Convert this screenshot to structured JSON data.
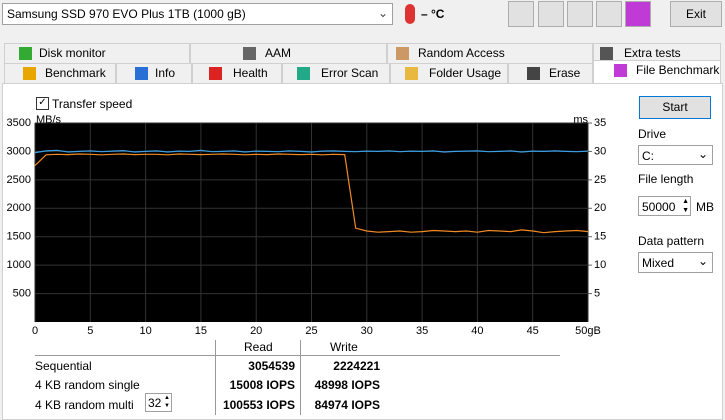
{
  "toolbar": {
    "drive": "Samsung SSD 970 EVO Plus 1TB (1000 gB)",
    "temperature": "– °C",
    "exit": "Exit"
  },
  "tabs": {
    "row1": [
      "Disk monitor",
      "AAM",
      "Random Access",
      "Extra tests"
    ],
    "row2": [
      "Benchmark",
      "Info",
      "Health",
      "Error Scan",
      "Folder Usage",
      "Erase",
      "File Benchmark"
    ]
  },
  "controls": {
    "transfer_speed": "Transfer speed",
    "start": "Start",
    "drive_label": "Drive",
    "drive": "C:",
    "file_length_label": "File length",
    "file_length": "50000",
    "file_length_unit": "MB",
    "data_pattern_label": "Data pattern",
    "data_pattern": "Mixed"
  },
  "chart_data": {
    "type": "line",
    "y_label": "MB/s",
    "y2_label": "ms",
    "x": [
      0,
      1,
      2,
      3,
      4,
      5,
      6,
      7,
      8,
      9,
      10,
      11,
      12,
      13,
      14,
      15,
      16,
      17,
      18,
      19,
      20,
      21,
      22,
      23,
      24,
      25,
      26,
      27,
      28,
      29,
      30,
      31,
      32,
      33,
      34,
      35,
      36,
      37,
      38,
      39,
      40,
      41,
      42,
      43,
      44,
      45,
      46,
      47,
      48,
      49,
      50
    ],
    "series": [
      {
        "color": "#3a9fe6",
        "values": [
          2980,
          3010,
          3020,
          2990,
          3000,
          3010,
          2995,
          3005,
          3015,
          2990,
          3000,
          3010,
          2990,
          3005,
          3000,
          3020,
          2995,
          3000,
          3010,
          2990,
          3005,
          3000,
          2995,
          3010,
          3000,
          2990,
          3005,
          3010,
          3000,
          2995,
          3005,
          3000,
          3010,
          2995,
          3005,
          3000,
          3010,
          2990,
          3000,
          3005,
          3010,
          2995,
          3000,
          3010,
          2990,
          3005,
          3000,
          3010,
          3000,
          2995,
          3005
        ]
      },
      {
        "color": "#f08a24",
        "values": [
          2750,
          2940,
          2950,
          2945,
          2955,
          2950,
          2940,
          2950,
          2955,
          2945,
          2950,
          2950,
          2940,
          2955,
          2950,
          2945,
          2950,
          2955,
          2950,
          2940,
          2950,
          2945,
          2955,
          2950,
          2945,
          2950,
          2940,
          2950,
          2945,
          1650,
          1600,
          1580,
          1590,
          1600,
          1580,
          1590,
          1610,
          1600,
          1590,
          1600,
          1580,
          1610,
          1600,
          1590,
          1620,
          1600,
          1570,
          1590,
          1600,
          1610,
          1590
        ]
      }
    ],
    "xlim": [
      0,
      50
    ],
    "xticks": [
      0,
      5,
      10,
      15,
      20,
      25,
      30,
      35,
      40,
      45,
      {
        "value": 50,
        "label": "50gB"
      }
    ],
    "ylim": [
      0,
      3500
    ],
    "yticks": [
      500,
      1000,
      1500,
      2000,
      2500,
      3000,
      3500
    ],
    "y2lim": [
      0,
      35
    ],
    "y2ticks": [
      5,
      10,
      15,
      20,
      25,
      30,
      35
    ],
    "grid": true
  },
  "table": {
    "header": [
      "Read",
      "Write"
    ],
    "rows": [
      [
        "Sequential",
        "3054539",
        "2224221"
      ],
      [
        "4 KB random single",
        "15008 IOPS",
        "48998 IOPS"
      ],
      [
        "4 KB random multi",
        "100553 IOPS",
        "84974 IOPS"
      ]
    ],
    "queue_depth": "32"
  }
}
